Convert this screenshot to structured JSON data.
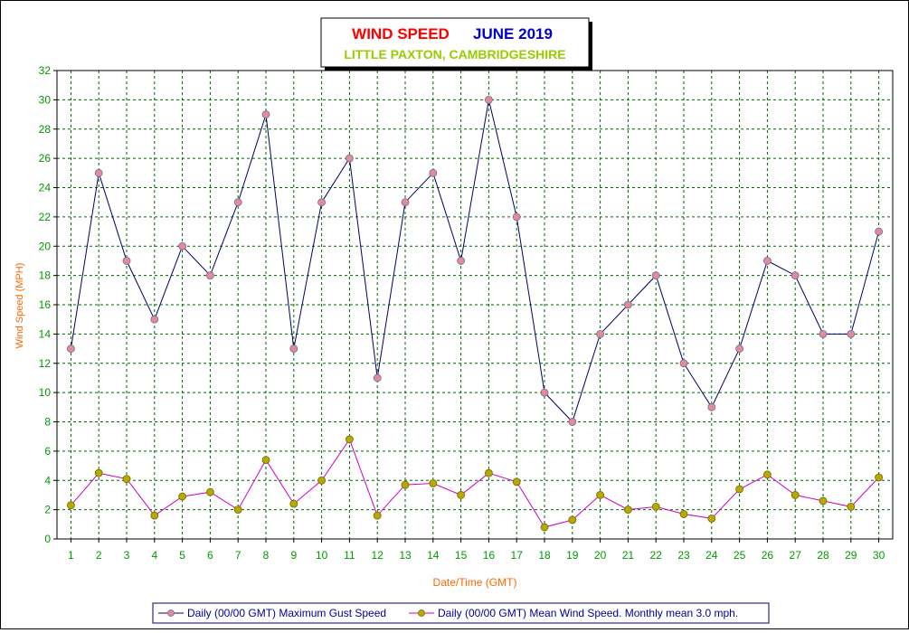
{
  "chart_data": {
    "type": "line",
    "title": "WIND SPEED",
    "title_date": "JUNE 2019",
    "subtitle": "LITTLE PAXTON, CAMBRIDGESHIRE",
    "xlabel": "Date/Time (GMT)",
    "ylabel": "Wind Speed (MPH)",
    "ylim": [
      0,
      32
    ],
    "y_ticks": [
      "0",
      "2",
      "4",
      "6",
      "8",
      "10",
      "12",
      "14",
      "16",
      "18",
      "20",
      "22",
      "24",
      "26",
      "28",
      "30",
      "32"
    ],
    "categories": [
      "1",
      "2",
      "3",
      "4",
      "5",
      "6",
      "7",
      "8",
      "9",
      "10",
      "11",
      "12",
      "13",
      "14",
      "15",
      "16",
      "17",
      "18",
      "19",
      "20",
      "21",
      "22",
      "23",
      "24",
      "25",
      "26",
      "27",
      "28",
      "29",
      "30"
    ],
    "grid": true,
    "legend_position": "bottom",
    "series": [
      {
        "name": "Daily (00/00 GMT) Maximum Gust Speed",
        "line_color": "#000066",
        "marker_color": "#e58a9a",
        "values": [
          13,
          25,
          19,
          15,
          20,
          18,
          23,
          29,
          13,
          23,
          26,
          11,
          23,
          25,
          19,
          30,
          22,
          10,
          8,
          14,
          16,
          18,
          12,
          9,
          13,
          19,
          18,
          14,
          14,
          21
        ]
      },
      {
        "name": "Daily (00/00 GMT) Mean Wind Speed. Monthly mean 3.0 mph.",
        "line_color": "#cc00cc",
        "marker_color": "#b8a800",
        "values": [
          2.3,
          4.5,
          4.1,
          1.6,
          2.9,
          3.2,
          2.0,
          5.4,
          2.4,
          4.0,
          6.8,
          1.6,
          3.7,
          3.8,
          3.0,
          4.5,
          3.9,
          0.8,
          1.3,
          3.0,
          2.0,
          2.2,
          1.7,
          1.4,
          3.4,
          4.4,
          3.0,
          2.6,
          2.2,
          4.2
        ]
      }
    ]
  }
}
